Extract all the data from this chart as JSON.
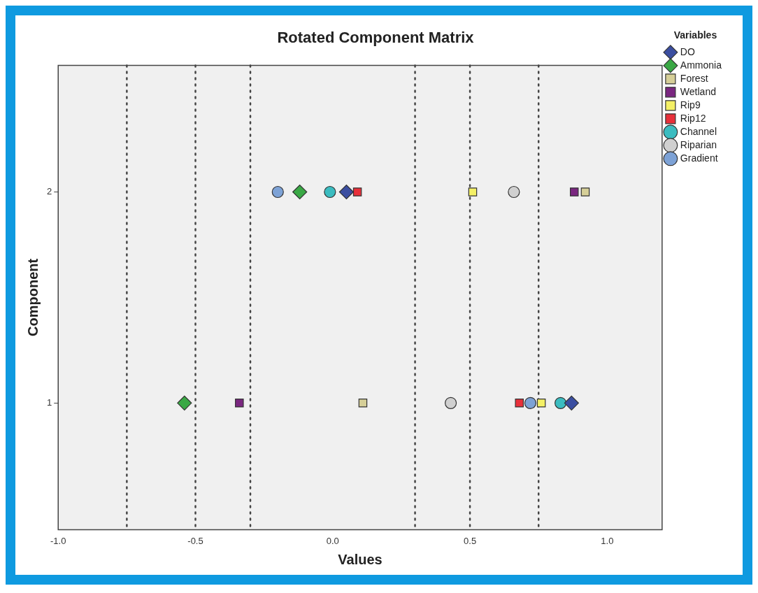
{
  "chart_data": {
    "type": "scatter",
    "title": "Rotated Component Matrix",
    "xlabel": "Values",
    "ylabel": "Component",
    "legend_title": "Variables",
    "legend": "top right",
    "grid": false,
    "xlim": [
      -1.0,
      1.2
    ],
    "xticks": [
      {
        "value": -1,
        "label": "-1.0"
      },
      {
        "value": -0.5,
        "label": "-0.5"
      },
      {
        "value": 0,
        "label": "0.0"
      },
      {
        "value": 0.5,
        "label": "0.5"
      },
      {
        "value": 1,
        "label": "1.0"
      }
    ],
    "ylim": [
      0.4,
      2.6
    ],
    "yticks": [
      1,
      2
    ],
    "ref_lines": [
      {
        "axis": "x",
        "value": -0.75,
        "line_style": "dotted",
        "color": "#444444"
      },
      {
        "axis": "x",
        "value": -0.5,
        "line_style": "dotted",
        "color": "#444444"
      },
      {
        "axis": "x",
        "value": -0.3,
        "line_style": "dotted",
        "color": "#444444"
      },
      {
        "axis": "x",
        "value": 0.3,
        "line_style": "dotted",
        "color": "#444444"
      },
      {
        "axis": "x",
        "value": 0.5,
        "line_style": "dotted",
        "color": "#444444"
      },
      {
        "axis": "x",
        "value": 0.75,
        "line_style": "dotted",
        "color": "#444444"
      }
    ],
    "series": [
      {
        "name": "DO",
        "color": "#3b4ea0",
        "marker": "diamond",
        "x": [
          0.87,
          0.05
        ],
        "values": [
          1,
          2
        ]
      },
      {
        "name": "Ammonia",
        "color": "#3aa845",
        "marker": "diamond",
        "x": [
          -0.54,
          -0.12
        ],
        "values": [
          1,
          2
        ]
      },
      {
        "name": "Forest",
        "color": "#d6cf98",
        "marker": "square",
        "x": [
          0.11,
          0.92
        ],
        "values": [
          1,
          2
        ]
      },
      {
        "name": "Wetland",
        "color": "#7a2680",
        "marker": "square",
        "x": [
          -0.34,
          0.88
        ],
        "values": [
          1,
          2
        ]
      },
      {
        "name": "Rip9",
        "color": "#f4f066",
        "marker": "square",
        "x": [
          0.76,
          0.51
        ],
        "values": [
          1,
          2
        ]
      },
      {
        "name": "Rip12",
        "color": "#e8303a",
        "marker": "square",
        "x": [
          0.68,
          0.09
        ],
        "values": [
          1,
          2
        ]
      },
      {
        "name": "Channel",
        "color": "#3bbcc0",
        "marker": "circle",
        "x": [
          0.83,
          -0.01
        ],
        "values": [
          1,
          2
        ]
      },
      {
        "name": "Riparian",
        "color": "#d0d0d0",
        "marker": "circle",
        "x": [
          0.43,
          0.66
        ],
        "values": [
          1,
          2
        ]
      },
      {
        "name": "Gradient",
        "color": "#7da2d6",
        "marker": "circle",
        "x": [
          0.72,
          -0.2
        ],
        "values": [
          1,
          2
        ]
      }
    ]
  }
}
